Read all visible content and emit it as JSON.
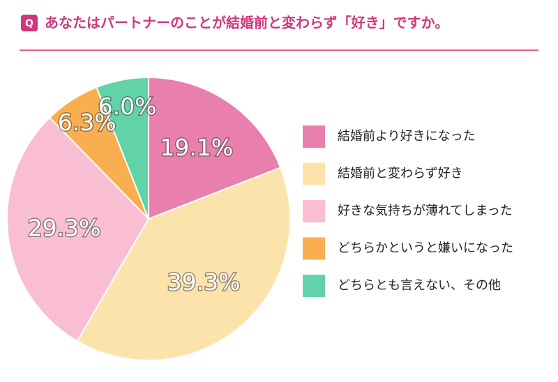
{
  "chart_data": {
    "type": "pie",
    "badge": "Q",
    "title": "あなたはパートナーのことが結婚前と変わらず「好き」ですか。",
    "categories": [
      "結婚前より好きになった",
      "結婚前と変わらず好き",
      "好きな気持ちが薄れてしまった",
      "どちらかというと嫌いになった",
      "どちらとも言えない、その他"
    ],
    "values": [
      19.1,
      39.3,
      29.3,
      6.3,
      6.0
    ],
    "value_labels": [
      "19.1%",
      "39.3%",
      "29.3%",
      "6.3%",
      "6.0%"
    ],
    "colors": [
      "#e97fad",
      "#fbe3ab",
      "#f9bed3",
      "#f9ae50",
      "#62d3a9"
    ]
  }
}
